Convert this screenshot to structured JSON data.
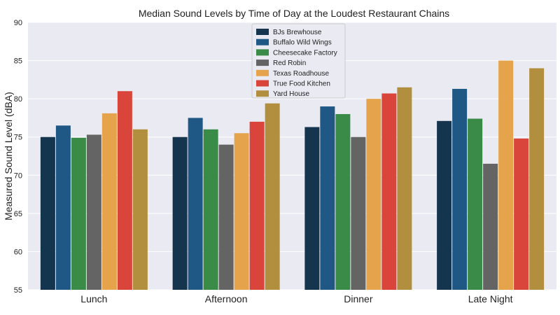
{
  "chart_data": {
    "type": "bar",
    "title": "Median Sound Levels by Time of Day at the Loudest Restaurant Chains",
    "xlabel": "",
    "ylabel": "Measured Sound Level (dBA)",
    "ylim": [
      55,
      90
    ],
    "yticks": [
      55,
      60,
      65,
      70,
      75,
      80,
      85,
      90
    ],
    "grid": true,
    "legend_position": "top-center",
    "categories": [
      "Lunch",
      "Afternoon",
      "Dinner",
      "Late Night"
    ],
    "series": [
      {
        "name": "BJs Brewhouse",
        "color": "#15344d",
        "values": [
          75.0,
          75.0,
          76.3,
          77.1
        ]
      },
      {
        "name": "Buffalo Wild Wings",
        "color": "#1f5785",
        "values": [
          76.5,
          77.5,
          79.0,
          81.3
        ]
      },
      {
        "name": "Cheesecake Factory",
        "color": "#3a8a48",
        "values": [
          74.9,
          76.0,
          78.0,
          77.4
        ]
      },
      {
        "name": "Red Robin",
        "color": "#646464",
        "values": [
          75.3,
          74.0,
          75.0,
          71.5
        ]
      },
      {
        "name": "Texas Roadhouse",
        "color": "#e5a44c",
        "values": [
          78.1,
          75.5,
          80.0,
          85.0
        ]
      },
      {
        "name": "True Food Kitchen",
        "color": "#d9453a",
        "values": [
          81.0,
          77.0,
          80.7,
          74.8
        ]
      },
      {
        "name": "Yard House",
        "color": "#b18f3e",
        "values": [
          76.0,
          79.4,
          81.5,
          84.0
        ]
      }
    ]
  }
}
